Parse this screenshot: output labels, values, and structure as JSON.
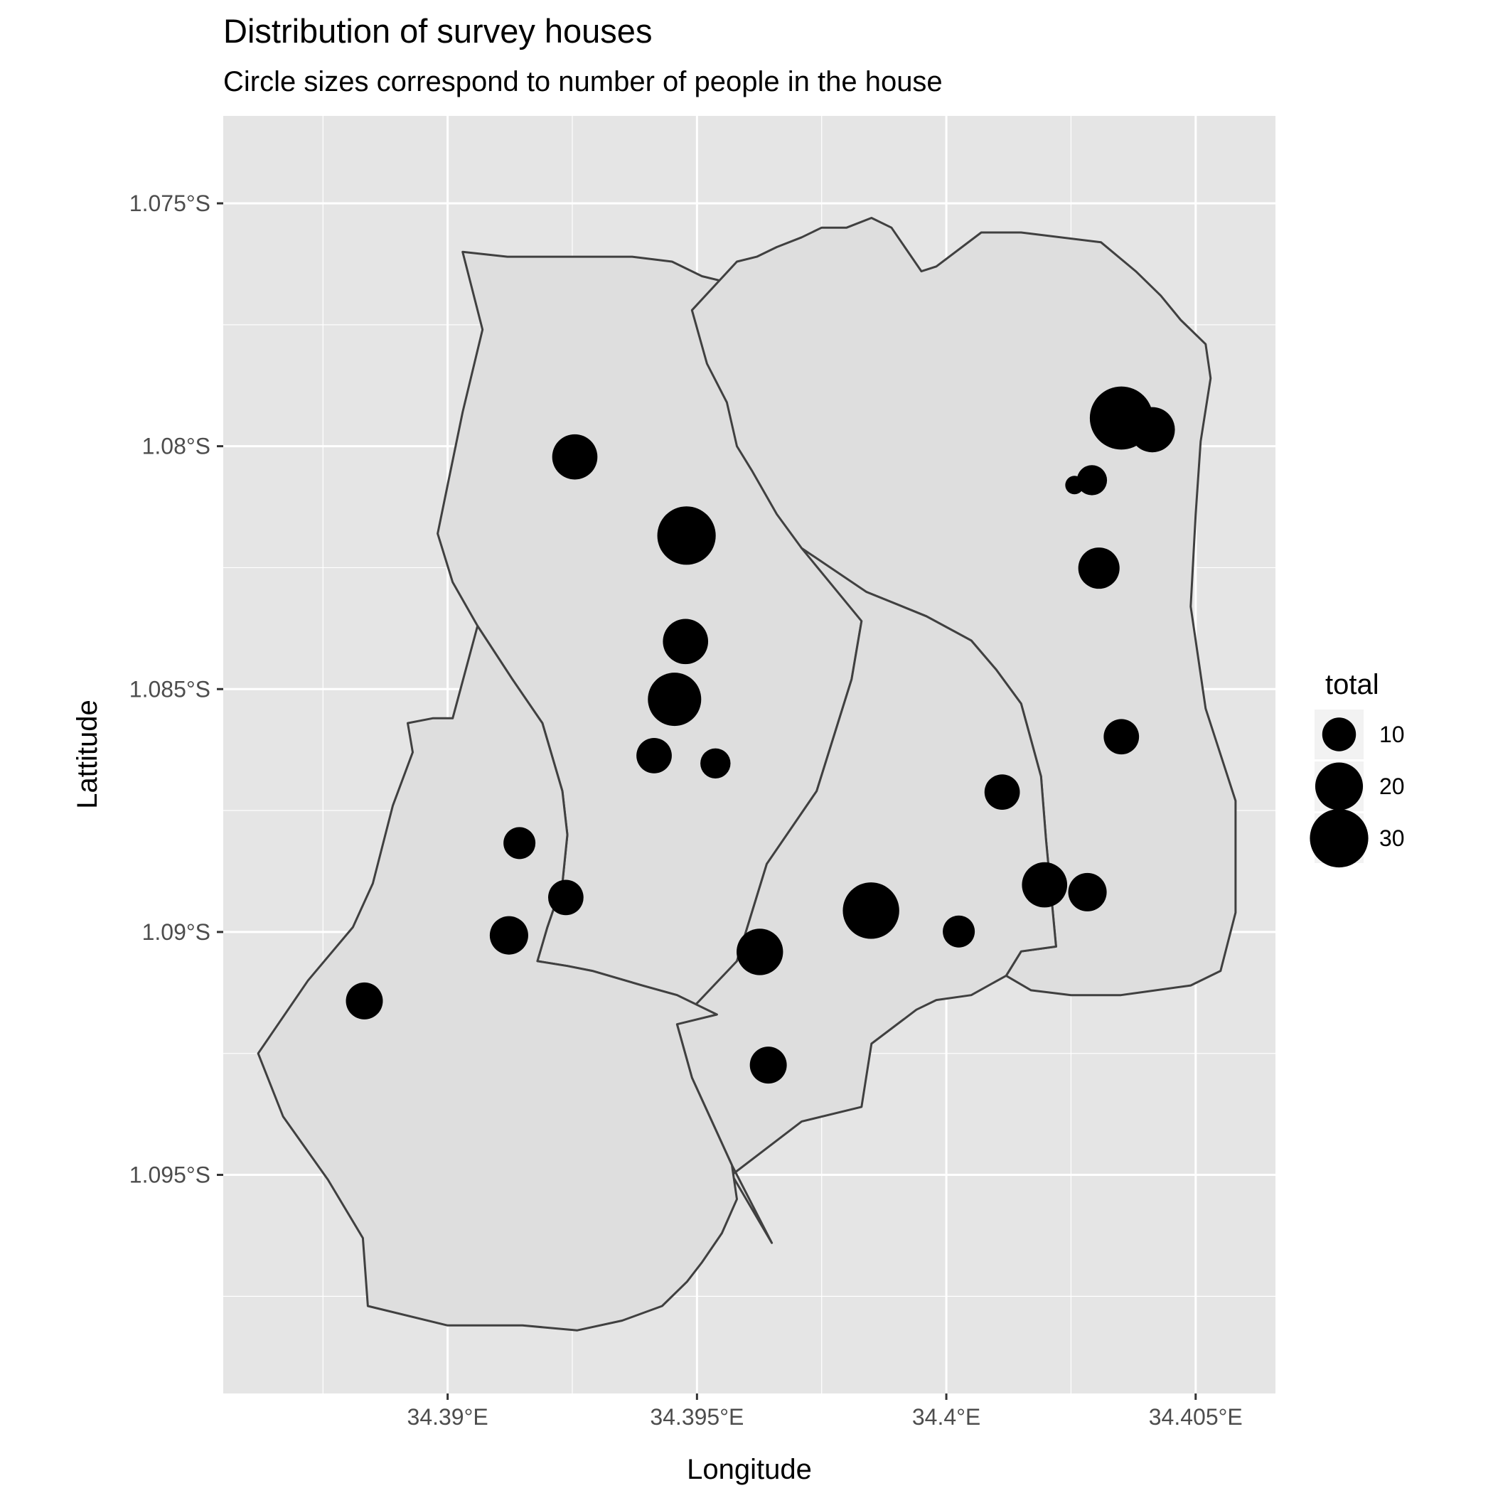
{
  "title": "Distribution of survey houses",
  "subtitle": "Circle sizes correspond to number of people in the house",
  "x_axis_title": "Longitude",
  "y_axis_title": "Lattitude",
  "legend_title": "total",
  "colors": {
    "panel_background": "#e5e5e5",
    "grid": "#ffffff",
    "region_fill": "#dedede",
    "region_stroke": "#404040",
    "point": "#000000"
  },
  "chart_data": {
    "type": "scatter",
    "map_type": "choropleth-outline with proportional symbols",
    "xlim": [
      34.3855,
      34.4066
    ],
    "ylim": [
      -1.0995,
      -1.0732
    ],
    "x_ticks": [
      {
        "value": 34.39,
        "label": "34.39°E"
      },
      {
        "value": 34.395,
        "label": "34.395°E"
      },
      {
        "value": 34.4,
        "label": "34.4°E"
      },
      {
        "value": 34.405,
        "label": "34.405°E"
      }
    ],
    "y_ticks": [
      {
        "value": -1.075,
        "label": "1.075°S"
      },
      {
        "value": -1.08,
        "label": "1.08°S"
      },
      {
        "value": -1.085,
        "label": "1.085°S"
      },
      {
        "value": -1.09,
        "label": "1.09°S"
      },
      {
        "value": -1.095,
        "label": "1.095°S"
      }
    ],
    "grid": true,
    "legend_position": "right",
    "size_legend": [
      10,
      20,
      30
    ],
    "regions": [
      {
        "polygon": [
          [
            34.3903,
            -1.076
          ],
          [
            34.3912,
            -1.0761
          ],
          [
            34.3923,
            -1.0761
          ],
          [
            34.3937,
            -1.0761
          ],
          [
            34.3945,
            -1.0762
          ],
          [
            34.3951,
            -1.0765
          ],
          [
            34.3955,
            -1.0766
          ],
          [
            34.3963,
            -1.0769
          ],
          [
            34.3968,
            -1.0772
          ],
          [
            34.3977,
            -1.078
          ],
          [
            34.3979,
            -1.0799
          ],
          [
            34.3981,
            -1.0811
          ],
          [
            34.3982,
            -1.0821
          ],
          [
            34.3983,
            -1.0836
          ],
          [
            34.3981,
            -1.0848
          ],
          [
            34.3974,
            -1.0871
          ],
          [
            34.3964,
            -1.0886
          ],
          [
            34.3958,
            -1.0906
          ],
          [
            34.3954,
            -1.0917
          ],
          [
            34.3946,
            -1.0913
          ],
          [
            34.3939,
            -1.0911
          ],
          [
            34.3929,
            -1.0908
          ],
          [
            34.3924,
            -1.0907
          ],
          [
            34.3918,
            -1.0906
          ],
          [
            34.392,
            -1.0899
          ],
          [
            34.3923,
            -1.089
          ],
          [
            34.3924,
            -1.088
          ],
          [
            34.3923,
            -1.0871
          ],
          [
            34.3919,
            -1.0857
          ],
          [
            34.3913,
            -1.0848
          ],
          [
            34.3906,
            -1.0837
          ],
          [
            34.3901,
            -1.0828
          ],
          [
            34.3898,
            -1.0818
          ],
          [
            34.39,
            -1.0808
          ],
          [
            34.3903,
            -1.0793
          ],
          [
            34.3907,
            -1.0776
          ],
          [
            34.3903,
            -1.076
          ]
        ]
      },
      {
        "polygon": [
          [
            34.3958,
            -1.0762
          ],
          [
            34.3962,
            -1.0761
          ],
          [
            34.3966,
            -1.0759
          ],
          [
            34.3971,
            -1.0757
          ],
          [
            34.3975,
            -1.0755
          ],
          [
            34.398,
            -1.0755
          ],
          [
            34.3985,
            -1.0753
          ],
          [
            34.3989,
            -1.0755
          ],
          [
            34.3995,
            -1.0764
          ],
          [
            34.3998,
            -1.0763
          ],
          [
            34.4007,
            -1.0756
          ],
          [
            34.4015,
            -1.0756
          ],
          [
            34.4031,
            -1.0758
          ],
          [
            34.4038,
            -1.0764
          ],
          [
            34.4043,
            -1.0769
          ],
          [
            34.4047,
            -1.0774
          ],
          [
            34.4052,
            -1.0779
          ],
          [
            34.4053,
            -1.0786
          ],
          [
            34.4051,
            -1.0799
          ],
          [
            34.405,
            -1.0814
          ],
          [
            34.4049,
            -1.0833
          ],
          [
            34.4052,
            -1.0854
          ],
          [
            34.4058,
            -1.0873
          ],
          [
            34.4058,
            -1.0896
          ],
          [
            34.4055,
            -1.0908
          ],
          [
            34.4049,
            -1.0911
          ],
          [
            34.4035,
            -1.0913
          ],
          [
            34.4025,
            -1.0913
          ],
          [
            34.4017,
            -1.0912
          ],
          [
            34.4012,
            -1.0909
          ],
          [
            34.4015,
            -1.0904
          ],
          [
            34.4022,
            -1.0903
          ],
          [
            34.402,
            -1.0881
          ],
          [
            34.4019,
            -1.0868
          ],
          [
            34.4015,
            -1.0853
          ],
          [
            34.401,
            -1.0846
          ],
          [
            34.4005,
            -1.084
          ],
          [
            34.3996,
            -1.0835
          ],
          [
            34.3984,
            -1.083
          ],
          [
            34.3979,
            -1.0828
          ],
          [
            34.3971,
            -1.0821
          ],
          [
            34.3966,
            -1.0814
          ],
          [
            34.3961,
            -1.0805
          ],
          [
            34.3958,
            -1.08
          ],
          [
            34.3956,
            -1.0791
          ],
          [
            34.3952,
            -1.0783
          ],
          [
            34.3949,
            -1.0772
          ],
          [
            34.3958,
            -1.0762
          ]
        ]
      },
      {
        "polygon": [
          [
            34.3971,
            -1.0821
          ],
          [
            34.3984,
            -1.083
          ],
          [
            34.3996,
            -1.0835
          ],
          [
            34.4005,
            -1.084
          ],
          [
            34.401,
            -1.0846
          ],
          [
            34.4015,
            -1.0853
          ],
          [
            34.4019,
            -1.0868
          ],
          [
            34.402,
            -1.0881
          ],
          [
            34.4022,
            -1.0903
          ],
          [
            34.4015,
            -1.0904
          ],
          [
            34.4012,
            -1.0909
          ],
          [
            34.4005,
            -1.0913
          ],
          [
            34.3998,
            -1.0914
          ],
          [
            34.3994,
            -1.0916
          ],
          [
            34.3985,
            -1.0923
          ],
          [
            34.3983,
            -1.0936
          ],
          [
            34.3971,
            -1.0939
          ],
          [
            34.3957,
            -1.095
          ],
          [
            34.3965,
            -1.0964
          ],
          [
            34.3957,
            -1.0948
          ],
          [
            34.3949,
            -1.093
          ],
          [
            34.3946,
            -1.0919
          ],
          [
            34.3958,
            -1.0906
          ],
          [
            34.3964,
            -1.0886
          ],
          [
            34.3974,
            -1.0871
          ],
          [
            34.3981,
            -1.0848
          ],
          [
            34.3983,
            -1.0836
          ],
          [
            34.3971,
            -1.0821
          ]
        ]
      },
      {
        "polygon": [
          [
            34.3892,
            -1.0857
          ],
          [
            34.3897,
            -1.0856
          ],
          [
            34.3901,
            -1.0856
          ],
          [
            34.3906,
            -1.0837
          ],
          [
            34.3913,
            -1.0848
          ],
          [
            34.3919,
            -1.0857
          ],
          [
            34.3923,
            -1.0871
          ],
          [
            34.3924,
            -1.088
          ],
          [
            34.3923,
            -1.089
          ],
          [
            34.392,
            -1.0899
          ],
          [
            34.3918,
            -1.0906
          ],
          [
            34.3924,
            -1.0907
          ],
          [
            34.3929,
            -1.0908
          ],
          [
            34.3939,
            -1.0911
          ],
          [
            34.3946,
            -1.0913
          ],
          [
            34.3954,
            -1.0917
          ],
          [
            34.3946,
            -1.0919
          ],
          [
            34.3949,
            -1.093
          ],
          [
            34.3957,
            -1.0948
          ],
          [
            34.3958,
            -1.0955
          ],
          [
            34.3955,
            -1.0962
          ],
          [
            34.3951,
            -1.0968
          ],
          [
            34.3948,
            -1.0972
          ],
          [
            34.3943,
            -1.0977
          ],
          [
            34.3935,
            -1.098
          ],
          [
            34.3926,
            -1.0982
          ],
          [
            34.3915,
            -1.0981
          ],
          [
            34.39,
            -1.0981
          ],
          [
            34.3884,
            -1.0977
          ],
          [
            34.3883,
            -1.0963
          ],
          [
            34.3876,
            -1.0951
          ],
          [
            34.3867,
            -1.0938
          ],
          [
            34.3862,
            -1.0925
          ],
          [
            34.3872,
            -1.091
          ],
          [
            34.3881,
            -1.0899
          ],
          [
            34.3885,
            -1.089
          ],
          [
            34.3889,
            -1.0874
          ],
          [
            34.3893,
            -1.0863
          ],
          [
            34.3892,
            -1.0857
          ]
        ]
      }
    ],
    "points": [
      {
        "x": 34.39255,
        "y": -1.08022,
        "total": 18
      },
      {
        "x": 34.39479,
        "y": -1.08184,
        "total": 30
      },
      {
        "x": 34.39477,
        "y": -1.08402,
        "total": 18
      },
      {
        "x": 34.39455,
        "y": -1.08521,
        "total": 25
      },
      {
        "x": 34.39414,
        "y": -1.08637,
        "total": 11
      },
      {
        "x": 34.39537,
        "y": -1.08653,
        "total": 8
      },
      {
        "x": 34.39144,
        "y": -1.08817,
        "total": 9
      },
      {
        "x": 34.39237,
        "y": -1.08929,
        "total": 11
      },
      {
        "x": 34.39123,
        "y": -1.09007,
        "total": 13
      },
      {
        "x": 34.38833,
        "y": -1.09142,
        "total": 12
      },
      {
        "x": 34.39626,
        "y": -1.09041,
        "total": 19
      },
      {
        "x": 34.39643,
        "y": -1.09274,
        "total": 12
      },
      {
        "x": 34.39849,
        "y": -1.08956,
        "total": 28
      },
      {
        "x": 34.40025,
        "y": -1.08999,
        "total": 9
      },
      {
        "x": 34.40112,
        "y": -1.08712,
        "total": 11
      },
      {
        "x": 34.40197,
        "y": -1.08903,
        "total": 18
      },
      {
        "x": 34.40283,
        "y": -1.08918,
        "total": 13
      },
      {
        "x": 34.40351,
        "y": -1.08598,
        "total": 11
      },
      {
        "x": 34.40257,
        "y": -1.0808,
        "total": 3
      },
      {
        "x": 34.40292,
        "y": -1.0807,
        "total": 8
      },
      {
        "x": 34.40351,
        "y": -1.07942,
        "total": 35
      },
      {
        "x": 34.40413,
        "y": -1.07966,
        "total": 18
      },
      {
        "x": 34.40306,
        "y": -1.08251,
        "total": 15
      }
    ]
  }
}
